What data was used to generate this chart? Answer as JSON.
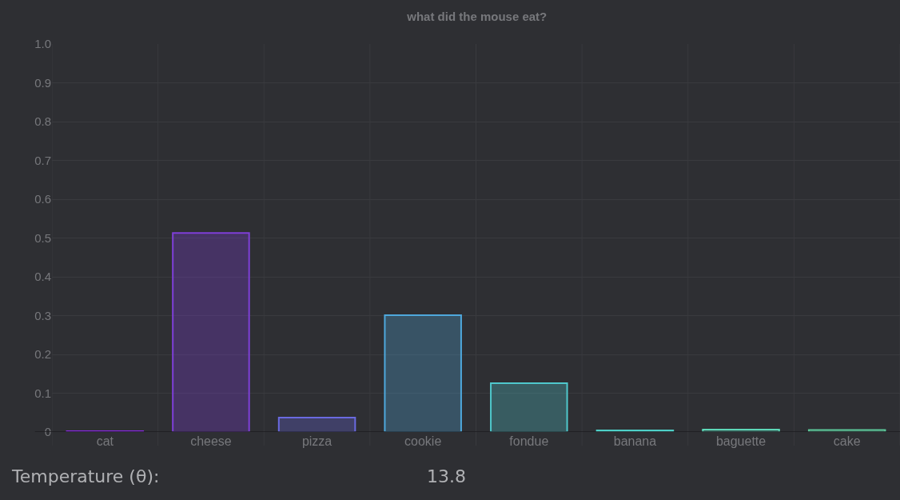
{
  "chart_data": {
    "type": "bar",
    "title": "what did the mouse eat?",
    "categories": [
      "cat",
      "cheese",
      "pizza",
      "cookie",
      "fondue",
      "banana",
      "baguette",
      "cake"
    ],
    "values": [
      0.002,
      0.513,
      0.037,
      0.301,
      0.126,
      0.004,
      0.006,
      0.005
    ],
    "colors": [
      "#8a2be2",
      "#7f3fd8",
      "#6a6ae0",
      "#4ea8dc",
      "#4fc8cc",
      "#4fd0c8",
      "#5dd8b8",
      "#5cc89a"
    ],
    "ylim": [
      0,
      1
    ],
    "yticks": [
      0,
      0.1,
      0.2,
      0.3,
      0.4,
      0.5,
      0.6,
      0.7,
      0.8,
      0.9,
      {
        "value": 1,
        "label": "1.0"
      }
    ],
    "grid": true,
    "annotations": [
      "Temperature (θ):",
      "13.8"
    ]
  }
}
